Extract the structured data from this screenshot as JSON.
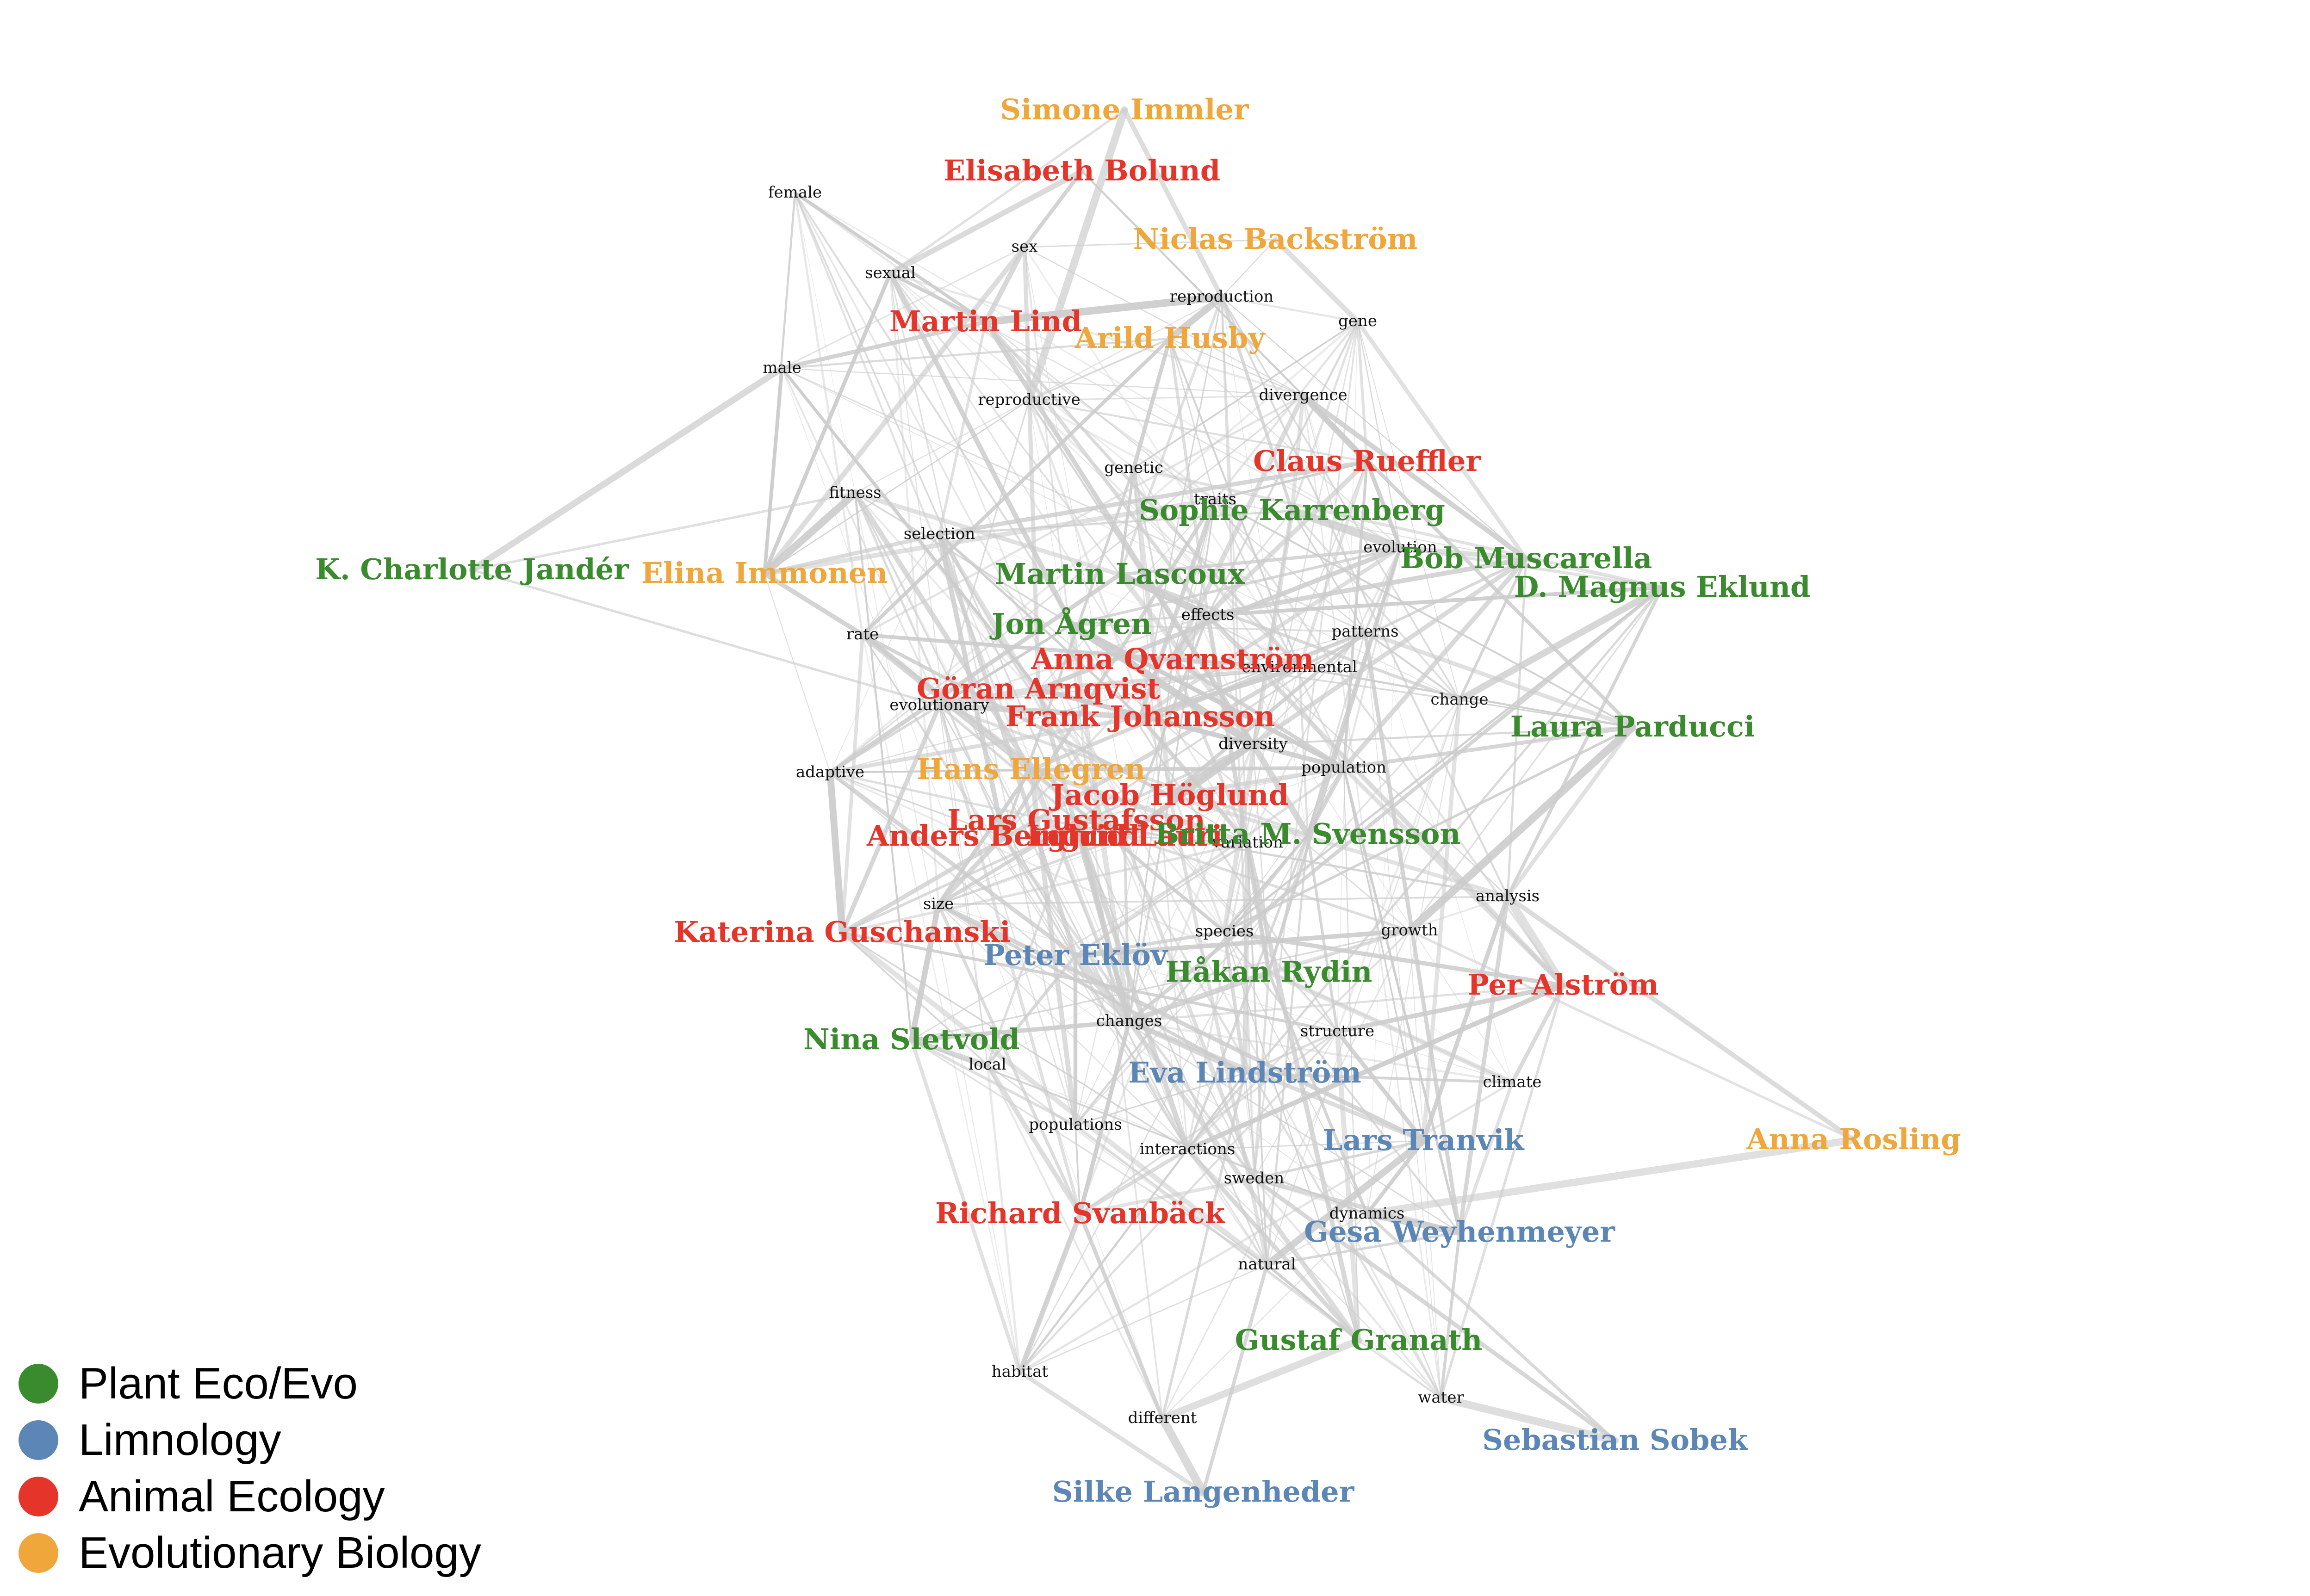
{
  "colors": {
    "plant": "#3a8a2e",
    "limno": "#5b86b5",
    "animal": "#e5352b",
    "evo": "#efa63b"
  },
  "legend": [
    {
      "label": "Plant Eco/Evo",
      "group": "plant"
    },
    {
      "label": "Limnology",
      "group": "limno"
    },
    {
      "label": "Animal Ecology",
      "group": "animal"
    },
    {
      "label": "Evolutionary Biology",
      "group": "evo"
    }
  ],
  "people": [
    {
      "name": "Simone Immler",
      "group": "evo"
    },
    {
      "name": "Elisabeth Bolund",
      "group": "animal"
    },
    {
      "name": "Niclas Backström",
      "group": "evo"
    },
    {
      "name": "Martin Lind",
      "group": "animal"
    },
    {
      "name": "Arild Husby",
      "group": "evo"
    },
    {
      "name": "Claus Rueffler",
      "group": "animal"
    },
    {
      "name": "Sophie Karrenberg",
      "group": "plant"
    },
    {
      "name": "Bob Muscarella",
      "group": "plant"
    },
    {
      "name": "D. Magnus Eklund",
      "group": "plant"
    },
    {
      "name": "K. Charlotte Jandér",
      "group": "plant"
    },
    {
      "name": "Elina Immonen",
      "group": "evo"
    },
    {
      "name": "Martin Lascoux",
      "group": "plant"
    },
    {
      "name": "Jon Ågren",
      "group": "plant"
    },
    {
      "name": "Anna Qvarnström",
      "group": "animal"
    },
    {
      "name": "Göran Arnqvist",
      "group": "animal"
    },
    {
      "name": "Frank Johansson",
      "group": "animal"
    },
    {
      "name": "Laura Parducci",
      "group": "plant"
    },
    {
      "name": "Hans Ellegren",
      "group": "evo"
    },
    {
      "name": "Jacob Höglund",
      "group": "animal"
    },
    {
      "name": "Lars Gustafsson",
      "group": "animal"
    },
    {
      "name": "Anders Berglund",
      "group": "animal"
    },
    {
      "name": "Ingrid Lauri",
      "group": "animal"
    },
    {
      "name": "Britta M. Svensson",
      "group": "plant"
    },
    {
      "name": "Katerina Guschanski",
      "group": "animal"
    },
    {
      "name": "Peter Eklöv",
      "group": "limno"
    },
    {
      "name": "Håkan Rydin",
      "group": "plant"
    },
    {
      "name": "Per Alström",
      "group": "animal"
    },
    {
      "name": "Nina Sletvold",
      "group": "plant"
    },
    {
      "name": "Eva Lindström",
      "group": "limno"
    },
    {
      "name": "Lars Tranvik",
      "group": "limno"
    },
    {
      "name": "Anna Rosling",
      "group": "evo"
    },
    {
      "name": "Richard Svanbäck",
      "group": "animal"
    },
    {
      "name": "Gesa Weyhenmeyer",
      "group": "limno"
    },
    {
      "name": "Gustaf Granath",
      "group": "plant"
    },
    {
      "name": "Sebastian Sobek",
      "group": "limno"
    },
    {
      "name": "Silke Langenheder",
      "group": "limno"
    }
  ],
  "terms": [
    "female",
    "sex",
    "sexual",
    "reproduction",
    "gene",
    "male",
    "reproductive",
    "divergence",
    "genetic",
    "traits",
    "fitness",
    "selection",
    "evolution",
    "effects",
    "rate",
    "patterns",
    "environmental",
    "change",
    "evolutionary",
    "diversity",
    "adaptive",
    "population",
    "variation",
    "analysis",
    "size",
    "species",
    "growth",
    "changes",
    "structure",
    "local",
    "climate",
    "populations",
    "interactions",
    "sweden",
    "dynamics",
    "natural",
    "habitat",
    "water",
    "different"
  ]
}
